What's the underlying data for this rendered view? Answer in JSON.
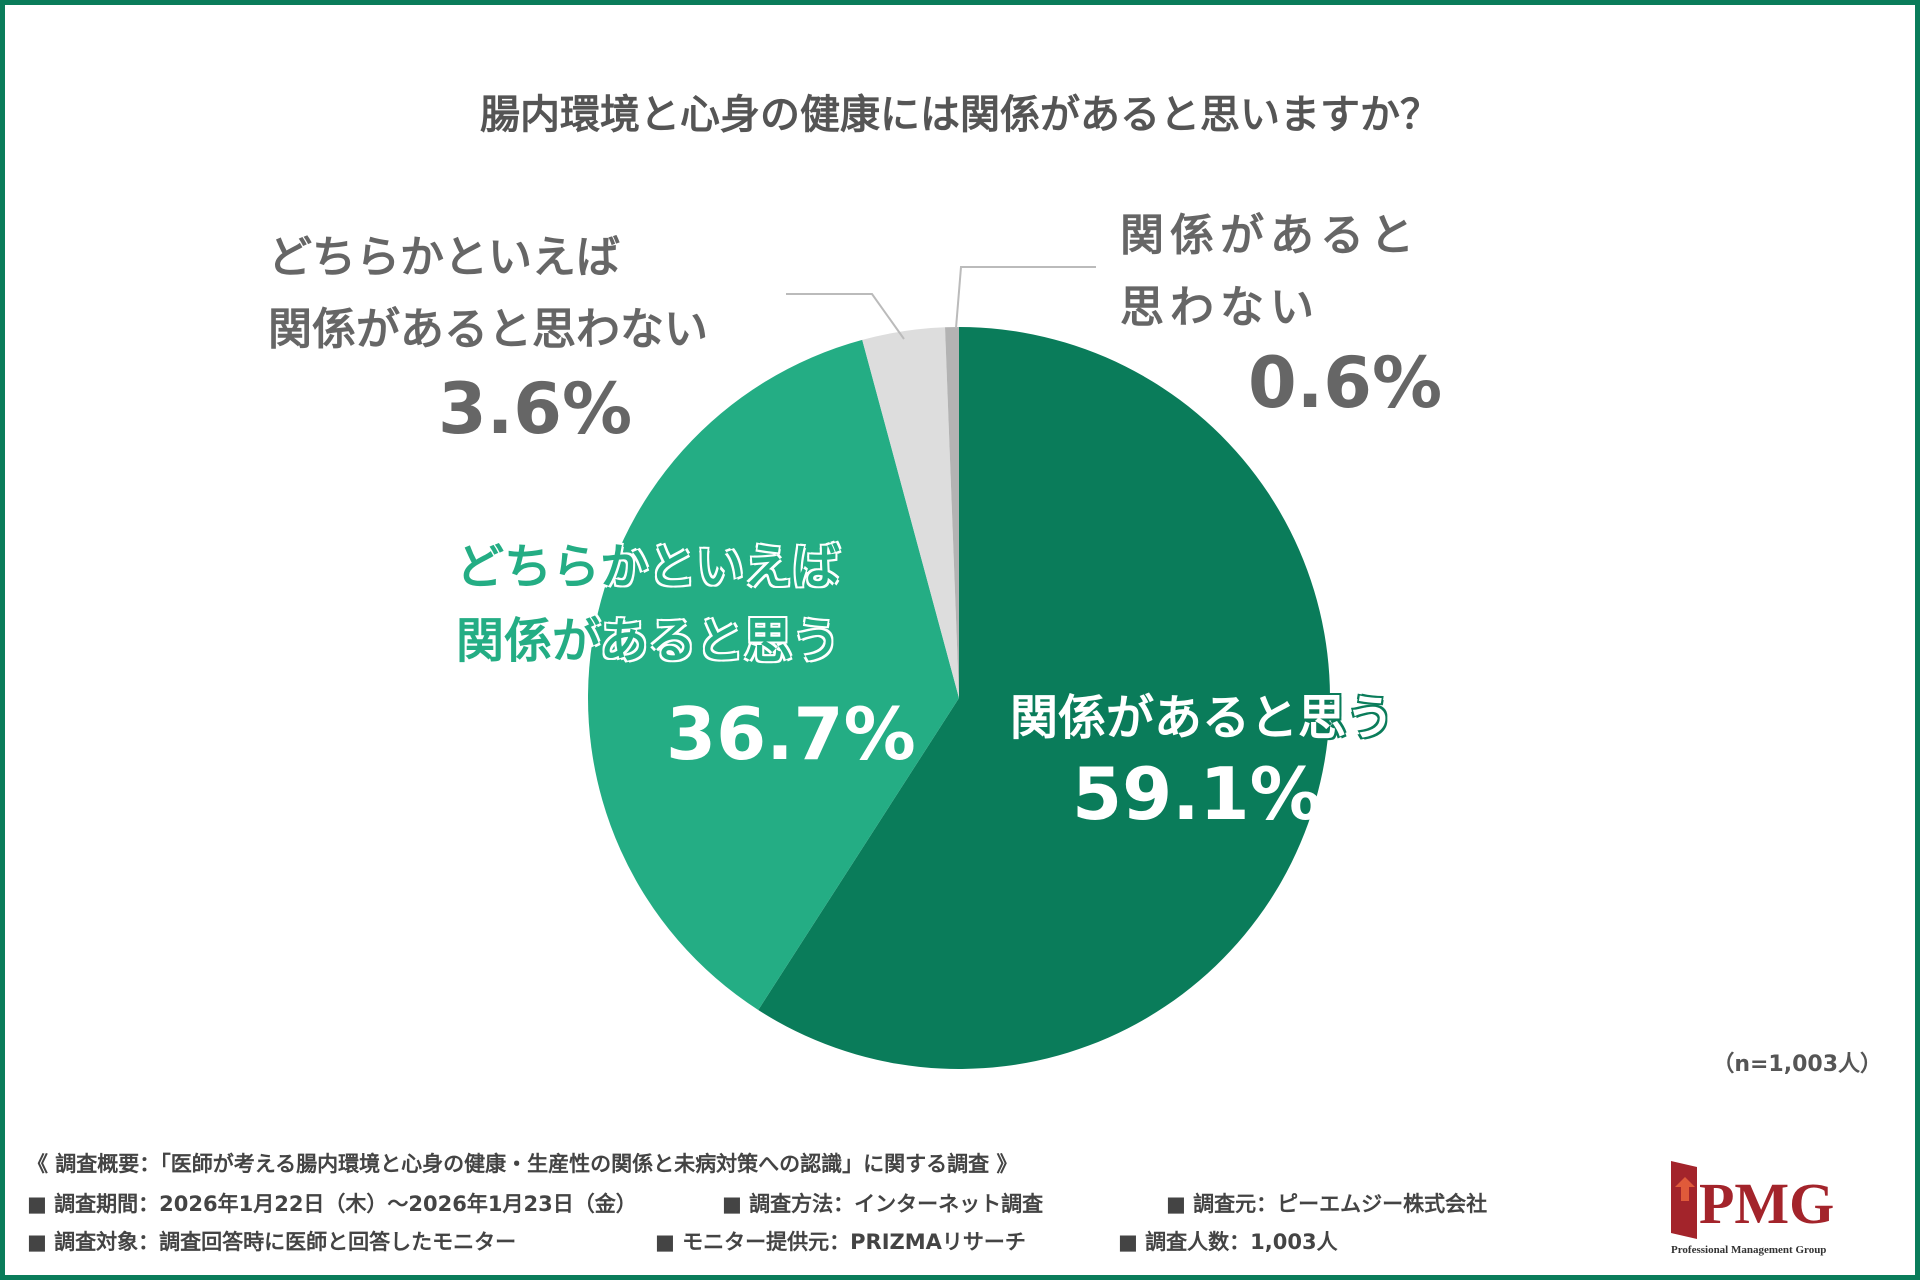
{
  "title": "腸内環境と心身の健康には関係があると思いますか？",
  "chart_data": {
    "type": "pie",
    "title": "腸内環境と心身の健康には関係があると思いますか？",
    "start_angle": "top",
    "direction": "clockwise",
    "slices": [
      {
        "label": "関係があると思う",
        "value": 59.1,
        "display": "59.1%",
        "color": "#0a7c5a"
      },
      {
        "label": "どちらかといえば関係があると思う",
        "value": 36.7,
        "display": "36.7%",
        "color": "#24ad84"
      },
      {
        "label": "どちらかといえば関係があると思わない",
        "value": 3.6,
        "display": "3.6%",
        "color": "#dddddd"
      },
      {
        "label": "関係があると思わない",
        "value": 0.6,
        "display": "0.6%",
        "color": "#b3b3b3"
      }
    ],
    "labels": {
      "s0": [
        "関係があると思う"
      ],
      "s1": [
        "どちらかといえば",
        "関係があると思う"
      ],
      "s2": [
        "どちらかといえば",
        "関係があると思わない"
      ],
      "s3": [
        "関係があると",
        "思わない"
      ]
    }
  },
  "sample": "（n=1,003人）",
  "footer": {
    "summary": "《 調査概要：「医師が考える腸内環境と心身の健康・生産性の関係と未病対策への認識」に関する調査 》",
    "period": "■ 調査期間：2026年1月22日（木）～2026年1月23日（金）",
    "method": "■ 調査方法：インターネット調査",
    "source": "■ 調査元：ピーエムジー株式会社",
    "target": "■ 調査対象：調査回答時に医師と回答したモニター",
    "provider": "■ モニター提供元：PRIZMAリサーチ",
    "count": "■ 調査人数：1,003人"
  },
  "logo": {
    "text": "PMG",
    "subtitle": "Professional Management Group",
    "color": "#a3242b"
  },
  "colors": {
    "border": "#0a7c5a"
  }
}
